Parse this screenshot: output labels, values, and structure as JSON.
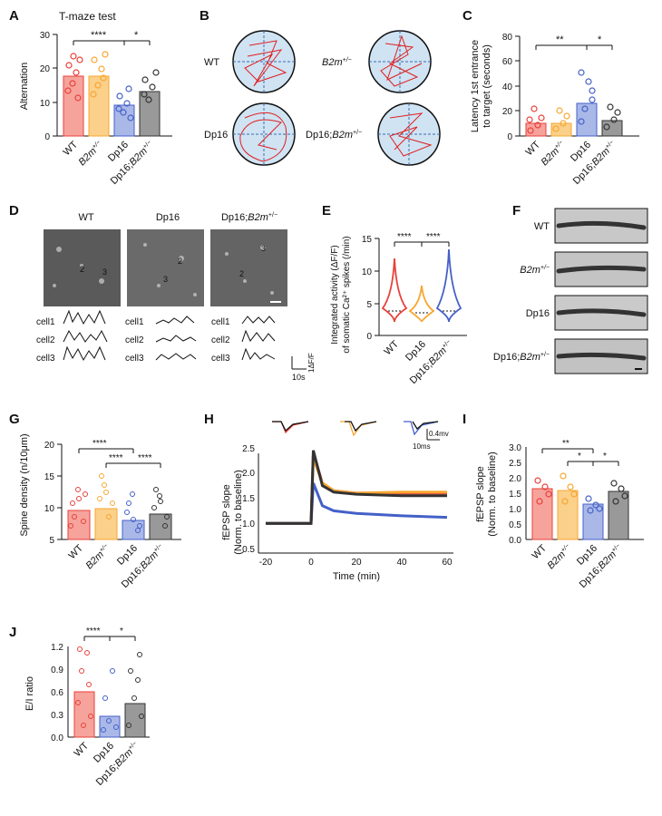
{
  "colors": {
    "wt": "#e8403a",
    "b2m": "#f7a731",
    "dp16": "#4460c8",
    "dp16b2m": "#333333",
    "trace": "#e02020",
    "pool": "#cfe3f3"
  },
  "panels": {
    "A": {
      "letter": "A",
      "title": "T-maze test",
      "ylabel": "Alternation",
      "ticks": [
        "0",
        "10",
        "20",
        "30"
      ],
      "groups": [
        "WT",
        "B2m",
        "Dp16",
        "Dp16;B2m"
      ],
      "sig": [
        "****",
        "*"
      ]
    },
    "B": {
      "letter": "B",
      "labels": [
        "WT",
        "B2m",
        "Dp16",
        "Dp16;B2m"
      ]
    },
    "C": {
      "letter": "C",
      "ylabel1": "Latency 1st entrance",
      "ylabel2": "to target (seconds)",
      "ticks": [
        "0",
        "20",
        "40",
        "60",
        "80"
      ],
      "sig": [
        "**",
        "*"
      ]
    },
    "D": {
      "letter": "D",
      "cols": [
        "WT",
        "Dp16",
        "Dp16;B2m"
      ],
      "cells": [
        "cell1",
        "cell2",
        "cell3"
      ],
      "scale_y": "1ΔF/F",
      "scale_x": "10s"
    },
    "E": {
      "letter": "E",
      "ylabel1": "Integrated activity (ΔF/F)",
      "ylabel2": "of somatic Ca²⁺ spikes (/min)",
      "ticks": [
        "0",
        "5",
        "10",
        "15"
      ],
      "groups": [
        "WT",
        "Dp16",
        "Dp16;B2m"
      ],
      "sig": [
        "****",
        "****"
      ]
    },
    "F": {
      "letter": "F",
      "labels": [
        "WT",
        "B2m",
        "Dp16",
        "Dp16;B2m"
      ]
    },
    "G": {
      "letter": "G",
      "ylabel": "Spine density (n/10μm)",
      "ticks": [
        "5",
        "10",
        "15",
        "20"
      ],
      "sig": [
        "****",
        "****",
        "****"
      ]
    },
    "H": {
      "letter": "H",
      "ylabel1": "fEPSP slope",
      "ylabel2": "(Norm. to baseline)",
      "xlabel": "Time (min)",
      "xticks": [
        "-20",
        "0",
        "20",
        "40",
        "60"
      ],
      "yticks": [
        "0.5",
        "1.0",
        "1.5",
        "2.0",
        "2.5"
      ],
      "scale_y": "0.4mv",
      "scale_x": "10ms"
    },
    "I": {
      "letter": "I",
      "ylabel1": "fEPSP slope",
      "ylabel2": "(Norm. to baseline)",
      "ticks": [
        "0.0",
        "0.5",
        "1.0",
        "1.5",
        "2.0",
        "2.5",
        "3.0"
      ],
      "sig": [
        "**",
        "*",
        "*"
      ]
    },
    "J": {
      "letter": "J",
      "ylabel": "E/I ratio",
      "ticks": [
        "0.0",
        "0.3",
        "0.6",
        "0.9",
        "1.2"
      ],
      "groups": [
        "WT",
        "Dp16",
        "Dp16;B2m"
      ],
      "sig": [
        "****",
        "*"
      ]
    }
  },
  "superscript": "+/−",
  "chart_data": [
    {
      "type": "bar",
      "panel": "A",
      "categories": [
        "WT",
        "B2m+/−",
        "Dp16",
        "Dp16;B2m+/−"
      ],
      "values": [
        17.5,
        17.5,
        9,
        13
      ],
      "ylim": [
        0,
        30
      ],
      "ylabel": "Alternation",
      "title": "T-maze test"
    },
    {
      "type": "bar",
      "panel": "C",
      "categories": [
        "WT",
        "B2m+/−",
        "Dp16",
        "Dp16;B2m+/−"
      ],
      "values": [
        10,
        10,
        26,
        12
      ],
      "ylim": [
        0,
        80
      ],
      "ylabel": "Latency 1st entrance to target (seconds)"
    },
    {
      "type": "bar",
      "panel": "G",
      "categories": [
        "WT",
        "B2m+/−",
        "Dp16",
        "Dp16;B2m+/−"
      ],
      "values": [
        9.5,
        9.8,
        8,
        9
      ],
      "ylim": [
        5,
        20
      ],
      "ylabel": "Spine density (n/10μm)"
    },
    {
      "type": "line",
      "panel": "H",
      "x_range": [
        -20,
        60
      ],
      "y_range": [
        0.5,
        2.5
      ],
      "xlabel": "Time (min)",
      "ylabel": "fEPSP slope (Norm. to baseline)",
      "series": [
        {
          "color": "#e8403a",
          "points": [
            [
              -20,
              1.0
            ],
            [
              0,
              1.0
            ],
            [
              1,
              2.4
            ],
            [
              5,
              1.8
            ],
            [
              10,
              1.65
            ],
            [
              20,
              1.6
            ],
            [
              40,
              1.6
            ],
            [
              60,
              1.6
            ]
          ]
        },
        {
          "color": "#f7a731",
          "points": [
            [
              -20,
              1.0
            ],
            [
              0,
              1.0
            ],
            [
              1,
              2.3
            ],
            [
              5,
              1.8
            ],
            [
              10,
              1.65
            ],
            [
              20,
              1.6
            ],
            [
              40,
              1.62
            ],
            [
              60,
              1.62
            ]
          ]
        },
        {
          "color": "#4460c8",
          "points": [
            [
              -20,
              1.0
            ],
            [
              0,
              1.0
            ],
            [
              1,
              1.8
            ],
            [
              5,
              1.35
            ],
            [
              10,
              1.25
            ],
            [
              20,
              1.2
            ],
            [
              40,
              1.15
            ],
            [
              60,
              1.12
            ]
          ]
        },
        {
          "color": "#333333",
          "points": [
            [
              -20,
              1.0
            ],
            [
              0,
              1.0
            ],
            [
              1,
              2.45
            ],
            [
              5,
              1.75
            ],
            [
              10,
              1.62
            ],
            [
              20,
              1.58
            ],
            [
              40,
              1.55
            ],
            [
              60,
              1.55
            ]
          ]
        }
      ]
    },
    {
      "type": "bar",
      "panel": "I",
      "categories": [
        "WT",
        "B2m+/−",
        "Dp16",
        "Dp16;B2m+/−"
      ],
      "values": [
        1.65,
        1.6,
        1.15,
        1.55
      ],
      "ylim": [
        0,
        3
      ],
      "ylabel": "fEPSP slope (Norm. to baseline)"
    },
    {
      "type": "bar",
      "panel": "J",
      "categories": [
        "WT",
        "Dp16",
        "Dp16;B2m+/−"
      ],
      "values": [
        0.6,
        0.28,
        0.45
      ],
      "ylim": [
        0,
        1.2
      ],
      "ylabel": "E/I ratio"
    }
  ]
}
